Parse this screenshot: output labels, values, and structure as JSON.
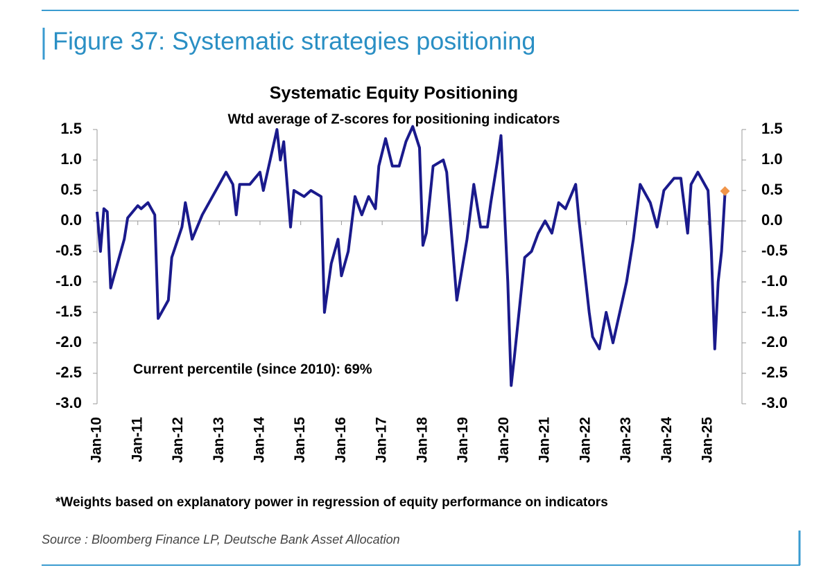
{
  "header": {
    "title": "Figure 37: Systematic strategies positioning"
  },
  "chart_data": {
    "type": "line",
    "title": "Systematic Equity Positioning",
    "subtitle": "Wtd average of Z-scores for positioning indicators",
    "annotation": "Current percentile (since 2010): 69%",
    "color": "#1a1a8c",
    "x": [
      "2010-01",
      "2010-02",
      "2010-03",
      "2010-04",
      "2010-05",
      "2010-07",
      "2010-09",
      "2010-10",
      "2011-01",
      "2011-02",
      "2011-04",
      "2011-06",
      "2011-07",
      "2011-10",
      "2011-11",
      "2012-02",
      "2012-03",
      "2012-05",
      "2012-08",
      "2012-11",
      "2013-01",
      "2013-03",
      "2013-05",
      "2013-06",
      "2013-07",
      "2013-10",
      "2014-01",
      "2014-02",
      "2014-04",
      "2014-06",
      "2014-07",
      "2014-08",
      "2014-10",
      "2014-11",
      "2015-02",
      "2015-04",
      "2015-07",
      "2015-08",
      "2015-10",
      "2015-12",
      "2016-01",
      "2016-03",
      "2016-05",
      "2016-07",
      "2016-09",
      "2016-11",
      "2016-12",
      "2017-02",
      "2017-04",
      "2017-06",
      "2017-08",
      "2017-10",
      "2017-12",
      "2018-01",
      "2018-02",
      "2018-04",
      "2018-07",
      "2018-08",
      "2018-10",
      "2018-11",
      "2019-02",
      "2019-04",
      "2019-06",
      "2019-08",
      "2019-09",
      "2019-11",
      "2019-12",
      "2020-02",
      "2020-03",
      "2020-04",
      "2020-07",
      "2020-09",
      "2020-11",
      "2021-01",
      "2021-03",
      "2021-05",
      "2021-07",
      "2021-10",
      "2021-11",
      "2022-02",
      "2022-03",
      "2022-05",
      "2022-07",
      "2022-09",
      "2022-11",
      "2023-01",
      "2023-03",
      "2023-05",
      "2023-08",
      "2023-10",
      "2023-12",
      "2024-03",
      "2024-05",
      "2024-07",
      "2024-08",
      "2024-10",
      "2025-01",
      "2025-02",
      "2025-03",
      "2025-04",
      "2025-05",
      "2025-06"
    ],
    "values": [
      0.15,
      -0.5,
      0.2,
      0.15,
      -1.1,
      -0.7,
      -0.3,
      0.05,
      0.25,
      0.2,
      0.3,
      0.1,
      -1.6,
      -1.3,
      -0.6,
      -0.1,
      0.3,
      -0.3,
      0.1,
      0.4,
      0.6,
      0.8,
      0.6,
      0.1,
      0.6,
      0.6,
      0.8,
      0.5,
      1.0,
      1.5,
      1.0,
      1.3,
      -0.1,
      0.5,
      0.4,
      0.5,
      0.4,
      -1.5,
      -0.7,
      -0.3,
      -0.9,
      -0.5,
      0.4,
      0.1,
      0.4,
      0.2,
      0.9,
      1.35,
      0.9,
      0.9,
      1.3,
      1.55,
      1.2,
      -0.4,
      -0.2,
      0.9,
      1.0,
      0.8,
      -0.6,
      -1.3,
      -0.3,
      0.6,
      -0.1,
      -0.1,
      0.3,
      1.0,
      1.4,
      -1.0,
      -2.7,
      -2.2,
      -0.6,
      -0.5,
      -0.2,
      0.0,
      -0.2,
      0.3,
      0.2,
      0.6,
      0.0,
      -1.5,
      -1.9,
      -2.1,
      -1.5,
      -2.0,
      -1.5,
      -1.0,
      -0.3,
      0.6,
      0.3,
      -0.1,
      0.5,
      0.7,
      0.7,
      -0.2,
      0.6,
      0.8,
      0.5,
      -0.5,
      -2.1,
      -1.0,
      -0.5,
      0.45
    ],
    "latest": {
      "x": "2025-06",
      "value": 0.49,
      "color": "#f0954a"
    },
    "xlim": [
      "2010-01",
      "2025-11"
    ],
    "xticks": [
      {
        "value": "2010-01",
        "label": "Jan-10"
      },
      {
        "value": "2011-01",
        "label": "Jan-11"
      },
      {
        "value": "2012-01",
        "label": "Jan-12"
      },
      {
        "value": "2013-01",
        "label": "Jan-13"
      },
      {
        "value": "2014-01",
        "label": "Jan-14"
      },
      {
        "value": "2015-01",
        "label": "Jan-15"
      },
      {
        "value": "2016-01",
        "label": "Jan-16"
      },
      {
        "value": "2017-01",
        "label": "Jan-17"
      },
      {
        "value": "2018-01",
        "label": "Jan-18"
      },
      {
        "value": "2019-01",
        "label": "Jan-19"
      },
      {
        "value": "2020-01",
        "label": "Jan-20"
      },
      {
        "value": "2021-01",
        "label": "Jan-21"
      },
      {
        "value": "2022-01",
        "label": "Jan-22"
      },
      {
        "value": "2023-01",
        "label": "Jan-23"
      },
      {
        "value": "2024-01",
        "label": "Jan-24"
      },
      {
        "value": "2025-01",
        "label": "Jan-25"
      }
    ],
    "ylim": [
      -3,
      1.5
    ],
    "yticks": [
      1.5,
      {
        "value": 1,
        "label": "1.0"
      },
      0.5,
      {
        "value": 0,
        "label": "0.0"
      },
      -0.5,
      {
        "value": -1,
        "label": "-1.0"
      },
      -1.5,
      {
        "value": -2,
        "label": "-2.0"
      },
      -2.5,
      {
        "value": -3,
        "label": "-3.0"
      }
    ],
    "y2lim": [
      -3,
      1.5
    ],
    "y2ticks": [
      1.5,
      {
        "value": 1,
        "label": "1.0"
      },
      0.5,
      {
        "value": 0,
        "label": "0.0"
      },
      -0.5,
      {
        "value": -1,
        "label": "-1.0"
      },
      -1.5,
      {
        "value": -2,
        "label": "-2.0"
      },
      -2.5,
      {
        "value": -3,
        "label": "-3.0"
      }
    ]
  },
  "footnote": "*Weights based on explanatory power in regression of equity performance on indicators",
  "source": "Source : Bloomberg Finance LP, Deutsche Bank Asset Allocation"
}
